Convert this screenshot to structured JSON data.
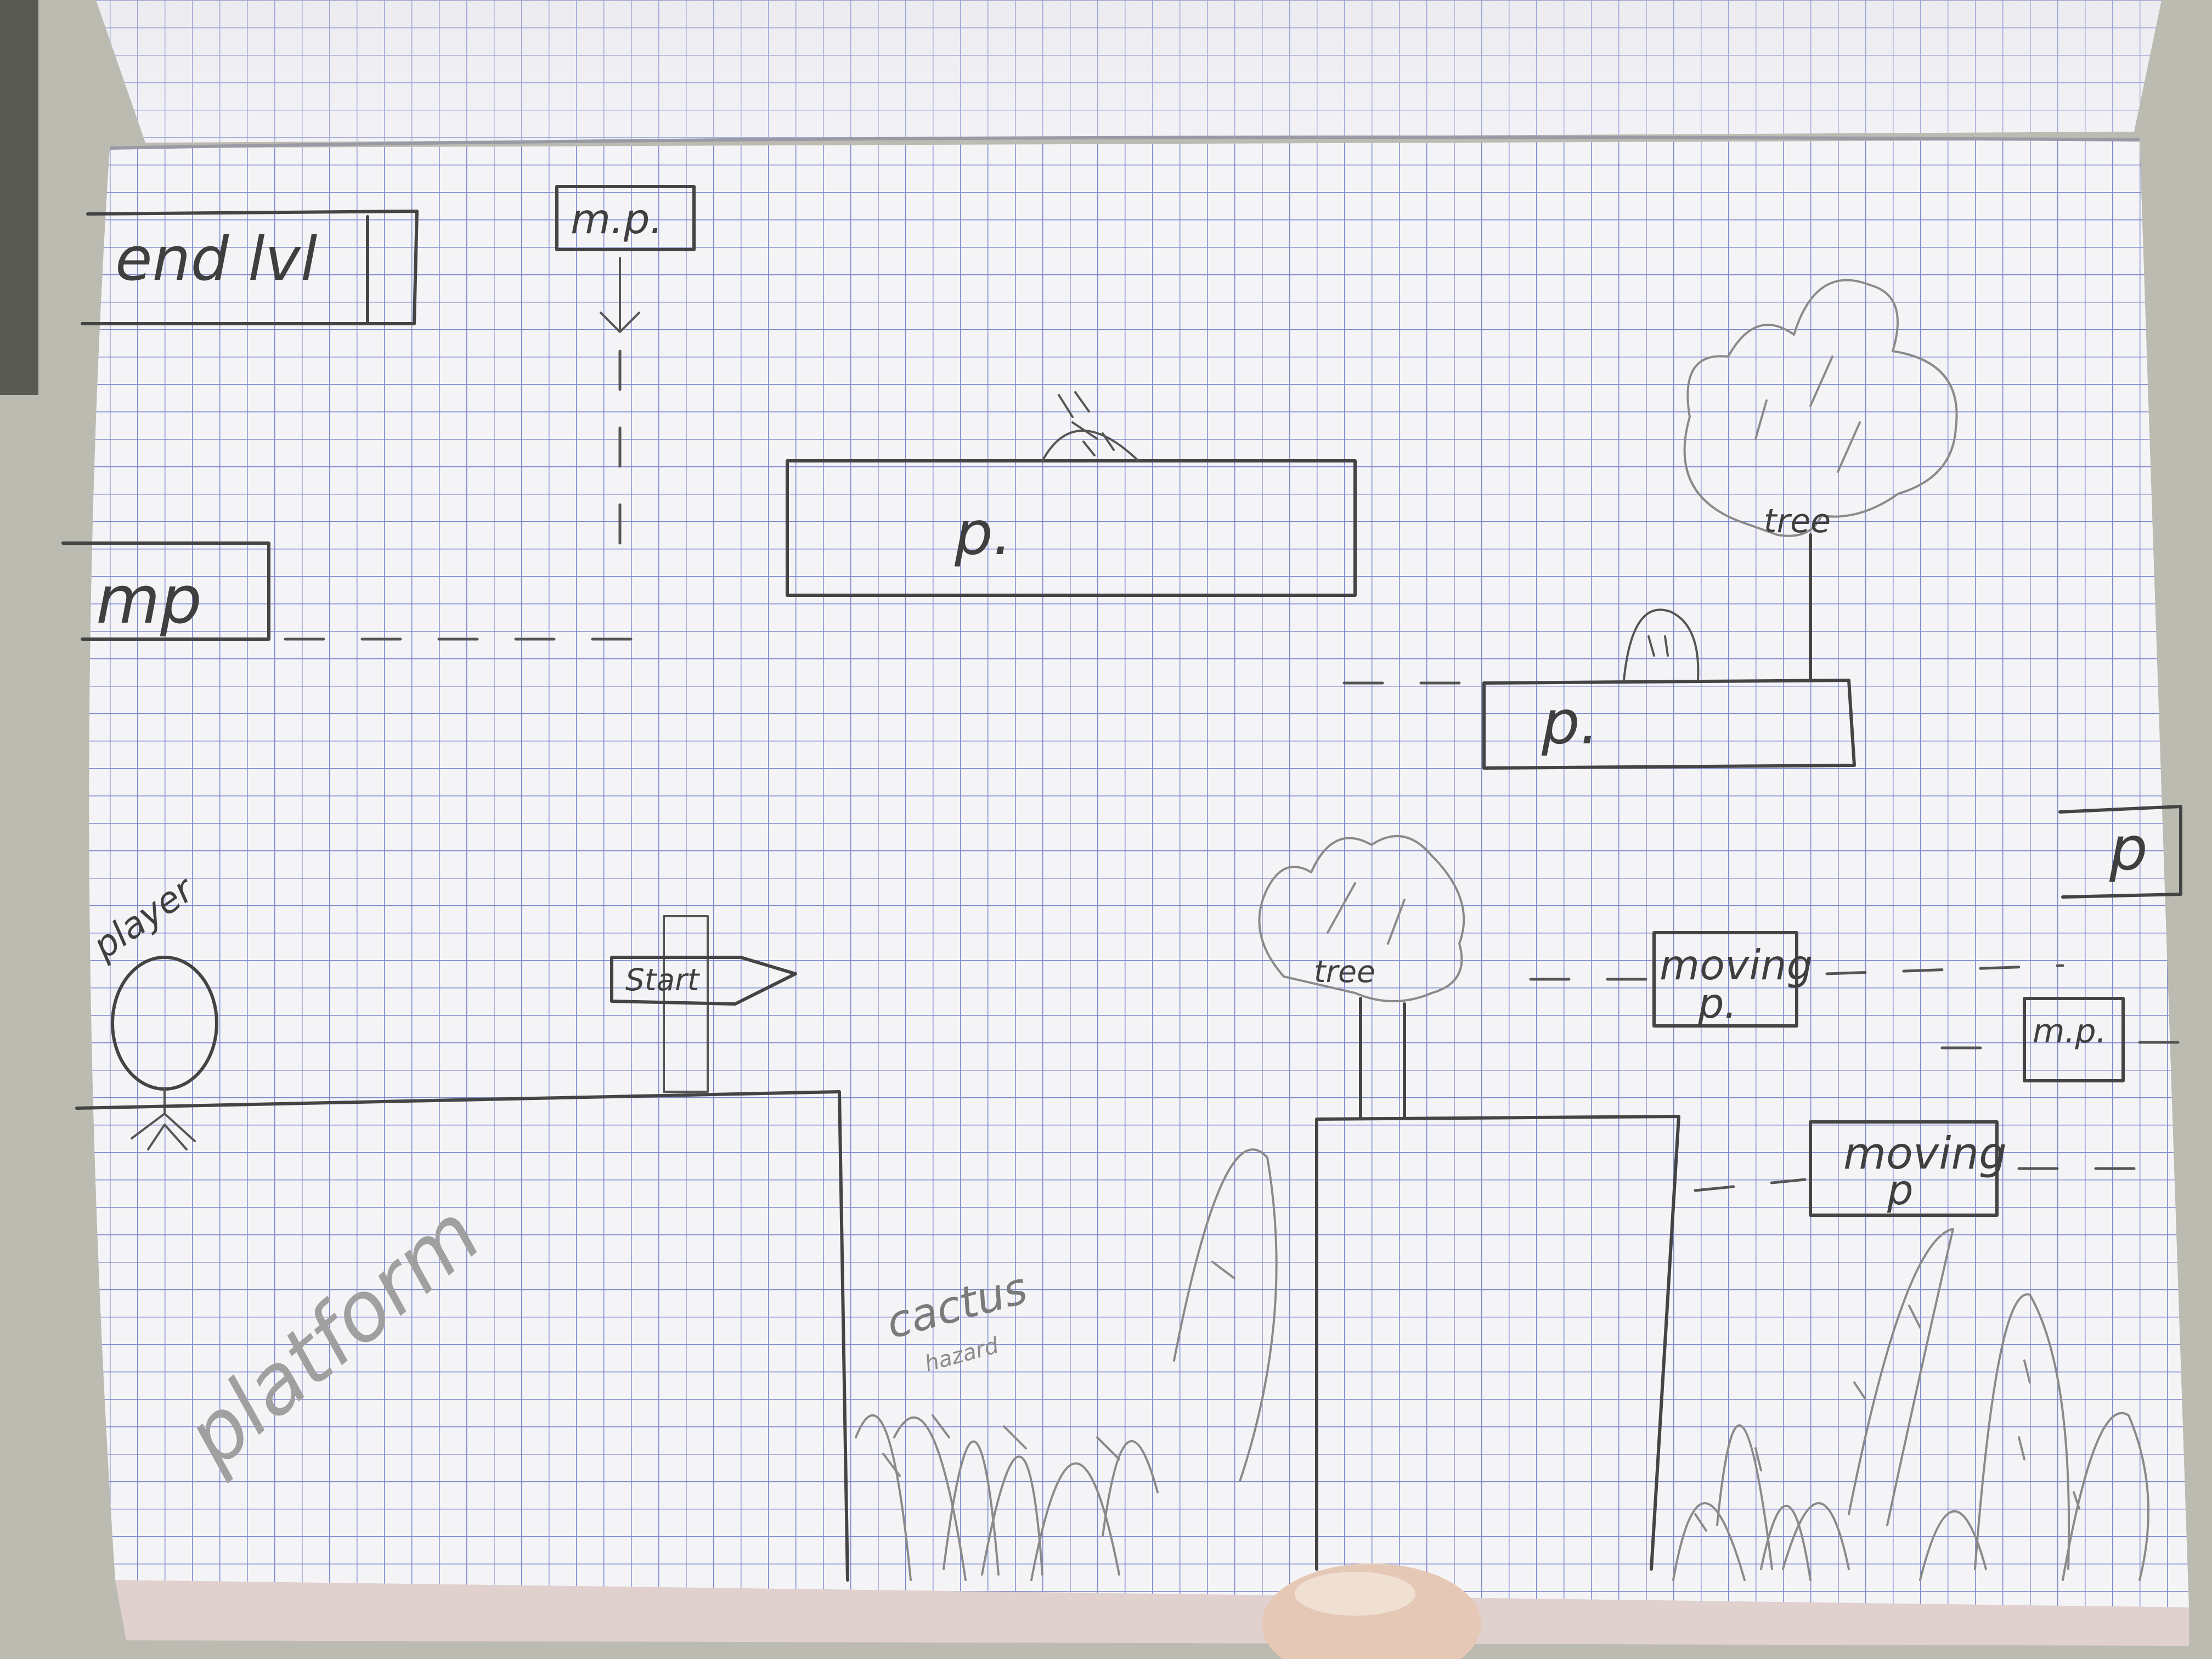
{
  "labels": {
    "end_level": "end lvl",
    "moving_platform_top": "m.p.",
    "moving_platform_left": "mp",
    "platform_center": "p.",
    "platform_right": "p.",
    "platform_far_right": "p",
    "tree_right": "tree",
    "tree_middle": "tree",
    "player": "player",
    "start_sign": "Start",
    "platform_big": "platform",
    "moving_p_1_line1": "moving",
    "moving_p_1_line2": "p.",
    "moving_p_2_line1": "moving",
    "moving_p_2_line2": "p",
    "moving_platform_small": "m.p.",
    "cactus": "cactus",
    "cactus_sub": "hazard"
  },
  "colors": {
    "paper": "#f4f4f6",
    "grid": "#7d86c9",
    "pencil": "#4a4a4a",
    "background": "#bdbcb3"
  },
  "icons": [
    "stick-figure-icon",
    "tree-icon",
    "signpost-icon",
    "cactus-icon",
    "spiky-enemy-icon"
  ]
}
